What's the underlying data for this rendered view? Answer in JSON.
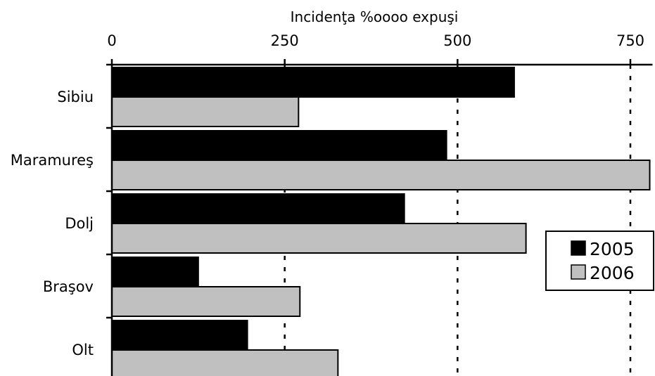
{
  "chart_data": {
    "type": "bar",
    "orientation": "horizontal",
    "title": "",
    "xlabel": "Incidenţa %oooo expuşi",
    "ylabel": "",
    "x_axis_position": "top",
    "xlim": [
      0,
      780
    ],
    "xticks": [
      0,
      250,
      500,
      750
    ],
    "xtick_labels": [
      "0",
      "250",
      "500",
      "750"
    ],
    "gridlines": "dashed vertical at 250, 500, 750",
    "categories": [
      "Sibiu",
      "Maramureş",
      "Dolj",
      "Braşov",
      "Olt"
    ],
    "series": [
      {
        "name": "2005",
        "color": "#000000",
        "values": [
          582,
          484,
          423,
          125,
          196
        ]
      },
      {
        "name": "2006",
        "color": "#c0c0c0",
        "values": [
          270,
          778,
          599,
          272,
          327
        ]
      }
    ],
    "legend": {
      "position": "right",
      "entries": [
        "2005",
        "2006"
      ]
    }
  }
}
